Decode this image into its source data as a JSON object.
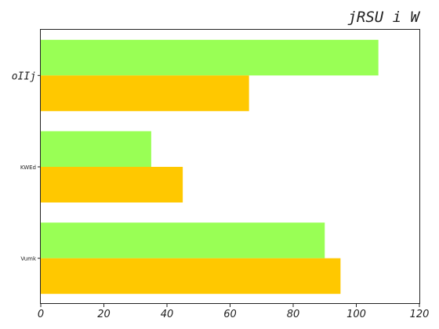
{
  "chart_data": {
    "type": "bar",
    "orientation": "horizontal",
    "title": "jRSU i W",
    "xlabel": "",
    "ylabel": "",
    "categories": [
      "oIIj",
      "KWEd",
      "Vumk"
    ],
    "series": [
      {
        "values": [
          107,
          35,
          90
        ],
        "color": "#99ff55"
      },
      {
        "values": [
          66,
          45,
          95
        ],
        "color": "#ffc800"
      }
    ],
    "xlim": [
      0,
      120
    ],
    "xticks": [
      0,
      20,
      40,
      60,
      80,
      100,
      120
    ],
    "grid": false,
    "legend": "none"
  }
}
